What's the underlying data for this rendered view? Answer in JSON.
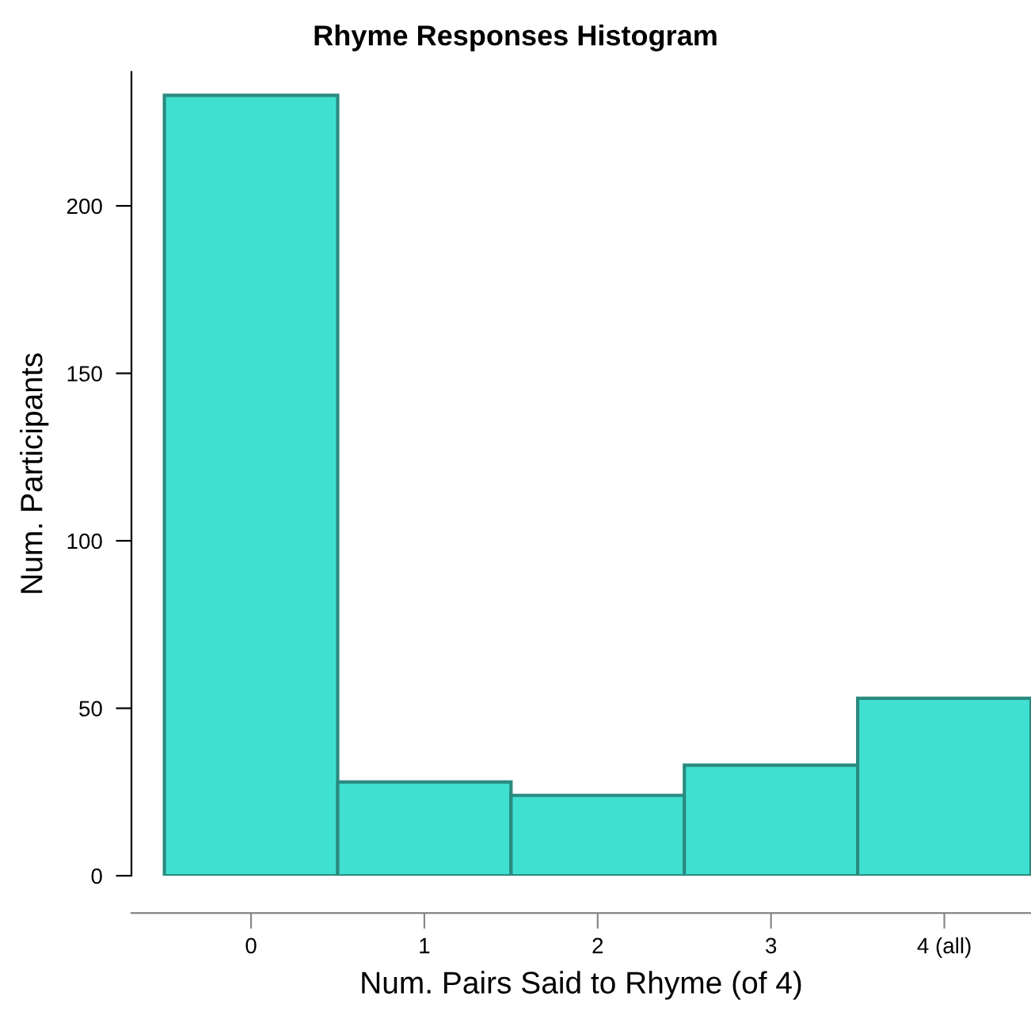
{
  "chart_data": {
    "type": "histogram",
    "title": "Rhyme Responses Histogram",
    "xlabel": "Num. Pairs Said to Rhyme (of 4)",
    "ylabel": "Num. Participants",
    "bins": [
      -0.5,
      0.5,
      1.5,
      2.5,
      3.5,
      4.5
    ],
    "values": [
      233,
      28,
      24,
      33,
      53
    ],
    "color": "#40e0d0",
    "xlim": [
      -0.69,
      4.5
    ],
    "xticks": [
      0,
      1,
      2,
      3,
      {
        "value": 4,
        "label": "4 (all)"
      }
    ],
    "ylim": [
      0,
      240
    ],
    "yticks": [
      0,
      50,
      100,
      150,
      200
    ],
    "grid": false
  }
}
